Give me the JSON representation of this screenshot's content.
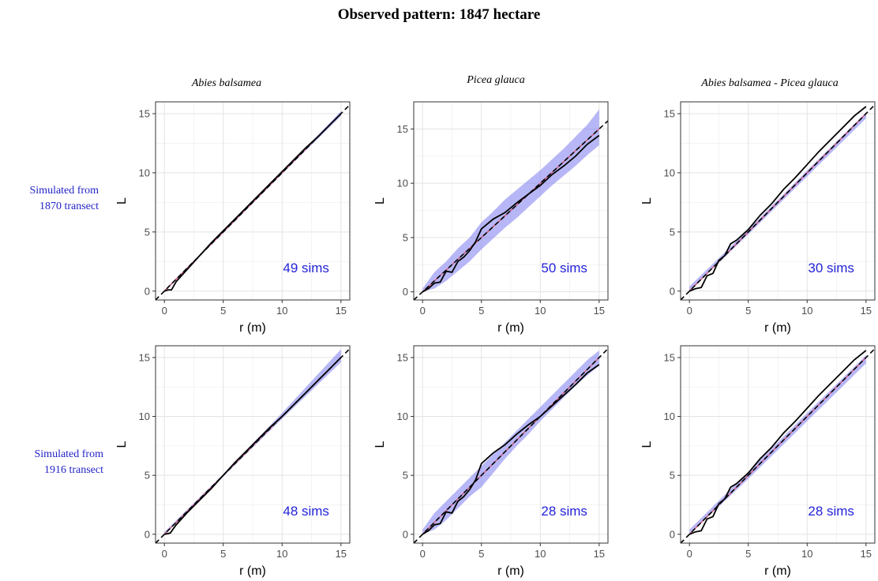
{
  "title": "Observed pattern: 1847 hectare",
  "column_titles": [
    "Abies balsamea",
    "Picea glauca",
    "Abies balsamea - Picea glauca"
  ],
  "row_labels": [
    [
      "Simulated from",
      "1870 transect"
    ],
    [
      "Simulated from",
      "1916 transect"
    ]
  ],
  "colors": {
    "envelope": "#7b7bf0",
    "expected_line": "#d05070",
    "observed_line": "#000000",
    "theoretical_line": "#000000",
    "sims_label": "#2323d8",
    "row_label": "#2323c8",
    "grid_major": "#e3e3e3",
    "grid_minor": "#f1f1f1"
  },
  "chart_data": [
    {
      "type": "line",
      "panel": "row1-col1",
      "sims_label": "49 sims",
      "xlabel": "r (m)",
      "ylabel": "L",
      "xlim": [
        -0.75,
        15.75
      ],
      "ylim": [
        -0.75,
        16
      ],
      "xticks": [
        0,
        5,
        10,
        15
      ],
      "yticks": [
        0,
        5,
        10,
        15
      ],
      "series": [
        {
          "role": "envelope",
          "x": [
            0,
            5,
            10,
            15
          ],
          "lower": [
            0,
            4.9,
            9.9,
            14.8
          ],
          "upper": [
            0.1,
            5.1,
            10.1,
            15.2
          ]
        },
        {
          "role": "expected",
          "x": [
            0,
            15
          ],
          "y": [
            0,
            15
          ]
        },
        {
          "role": "theoretical",
          "x": [
            -0.75,
            15.75
          ],
          "y": [
            -0.75,
            15.75
          ]
        },
        {
          "role": "observed",
          "x": [
            0,
            0.3,
            0.6,
            1,
            2,
            3,
            4,
            5,
            6,
            7,
            8,
            9,
            10,
            11,
            12,
            13,
            14,
            15
          ],
          "y": [
            0,
            0.1,
            0.1,
            0.8,
            1.9,
            3.0,
            4.1,
            5.1,
            6.1,
            7.1,
            8.1,
            9.1,
            10.1,
            11.1,
            12.1,
            13.0,
            14.0,
            15.0
          ]
        }
      ]
    },
    {
      "type": "line",
      "panel": "row1-col2",
      "sims_label": "50 sims",
      "xlabel": "r (m)",
      "ylabel": "L",
      "xlim": [
        -0.75,
        15.75
      ],
      "ylim": [
        -0.75,
        17.5
      ],
      "xticks": [
        0,
        5,
        10,
        15
      ],
      "yticks": [
        0,
        5,
        10,
        15
      ],
      "series": [
        {
          "role": "envelope",
          "x": [
            0,
            1,
            2,
            3,
            4,
            5,
            6,
            7,
            8,
            9,
            10,
            11,
            12,
            13,
            14,
            15
          ],
          "lower": [
            0,
            0.3,
            1.0,
            1.9,
            2.8,
            3.9,
            4.9,
            5.9,
            6.8,
            7.8,
            8.8,
            9.8,
            10.7,
            11.6,
            12.6,
            13.5
          ],
          "upper": [
            0.3,
            1.8,
            2.8,
            4.0,
            5.0,
            6.4,
            7.4,
            8.5,
            9.4,
            10.3,
            11.2,
            12.2,
            13.2,
            14.3,
            15.4,
            16.8
          ]
        },
        {
          "role": "expected",
          "x": [
            0,
            15
          ],
          "y": [
            0,
            15
          ]
        },
        {
          "role": "theoretical",
          "x": [
            -0.75,
            15.75
          ],
          "y": [
            -0.75,
            15.75
          ]
        },
        {
          "role": "observed",
          "x": [
            0,
            0.5,
            1,
            1.5,
            2,
            2.5,
            3,
            3.5,
            4,
            4.5,
            5,
            6,
            7,
            8,
            9,
            10,
            11,
            12,
            13,
            14,
            15
          ],
          "y": [
            0,
            0.3,
            0.8,
            0.9,
            1.9,
            1.8,
            2.8,
            3.2,
            3.8,
            4.6,
            5.8,
            6.7,
            7.3,
            8.2,
            9.0,
            9.8,
            10.8,
            11.6,
            12.5,
            13.6,
            14.4
          ]
        }
      ]
    },
    {
      "type": "line",
      "panel": "row1-col3",
      "sims_label": "30 sims",
      "xlabel": "r (m)",
      "ylabel": "L",
      "xlim": [
        -0.75,
        15.75
      ],
      "ylim": [
        -0.75,
        16
      ],
      "xticks": [
        0,
        5,
        10,
        15
      ],
      "yticks": [
        0,
        5,
        10,
        15
      ],
      "series": [
        {
          "role": "envelope",
          "x": [
            0,
            5,
            10,
            15
          ],
          "lower": [
            0,
            4.8,
            9.7,
            14.6
          ],
          "upper": [
            0.4,
            5.2,
            10.2,
            15.1
          ]
        },
        {
          "role": "expected",
          "x": [
            0,
            15
          ],
          "y": [
            0,
            15
          ]
        },
        {
          "role": "theoretical",
          "x": [
            -0.75,
            15.75
          ],
          "y": [
            -0.75,
            15.75
          ]
        },
        {
          "role": "observed",
          "x": [
            0,
            0.5,
            1,
            1.5,
            2,
            2.5,
            3,
            3.5,
            4,
            5,
            6,
            7,
            8,
            9,
            10,
            11,
            12,
            13,
            14,
            15
          ],
          "y": [
            0,
            0.2,
            0.3,
            1.3,
            1.5,
            2.6,
            3.0,
            4.0,
            4.3,
            5.2,
            6.4,
            7.4,
            8.6,
            9.6,
            10.7,
            11.8,
            12.8,
            13.8,
            14.8,
            15.6
          ]
        }
      ]
    },
    {
      "type": "line",
      "panel": "row2-col1",
      "sims_label": "48 sims",
      "xlabel": "r (m)",
      "ylabel": "L",
      "xlim": [
        -0.75,
        15.75
      ],
      "ylim": [
        -0.75,
        16
      ],
      "xticks": [
        0,
        5,
        10,
        15
      ],
      "yticks": [
        0,
        5,
        10,
        15
      ],
      "series": [
        {
          "role": "envelope",
          "x": [
            0,
            5,
            10,
            15
          ],
          "lower": [
            0,
            4.9,
            9.8,
            14.6
          ],
          "upper": [
            0.2,
            5.1,
            10.3,
            15.7
          ]
        },
        {
          "role": "expected",
          "x": [
            0,
            15
          ],
          "y": [
            0,
            15
          ]
        },
        {
          "role": "theoretical",
          "x": [
            -0.75,
            15.75
          ],
          "y": [
            -0.75,
            15.75
          ]
        },
        {
          "role": "observed",
          "x": [
            0,
            0.5,
            1,
            2,
            3,
            4,
            5,
            6,
            7,
            8,
            9,
            10,
            11,
            12,
            13,
            14,
            15
          ],
          "y": [
            0,
            0.1,
            0.8,
            1.9,
            2.9,
            3.9,
            5.0,
            6.1,
            7.1,
            8.1,
            9.1,
            10.0,
            11.0,
            12.0,
            13.0,
            14.0,
            15.0
          ]
        }
      ]
    },
    {
      "type": "line",
      "panel": "row2-col2",
      "sims_label": "28 sims",
      "xlabel": "r (m)",
      "ylabel": "L",
      "xlim": [
        -0.75,
        15.75
      ],
      "ylim": [
        -0.75,
        16
      ],
      "xticks": [
        0,
        5,
        10,
        15
      ],
      "yticks": [
        0,
        5,
        10,
        15
      ],
      "series": [
        {
          "role": "envelope",
          "x": [
            0,
            1,
            2,
            3,
            4,
            5,
            6,
            7,
            8,
            9,
            10,
            11,
            12,
            13,
            14,
            15
          ],
          "lower": [
            0,
            0.4,
            1.2,
            2.2,
            3.2,
            4.0,
            5.2,
            6.4,
            7.5,
            8.5,
            9.6,
            10.6,
            11.6,
            12.6,
            13.5,
            14.3
          ],
          "upper": [
            0.4,
            1.8,
            2.8,
            3.8,
            4.8,
            5.8,
            6.8,
            7.8,
            8.8,
            9.8,
            10.8,
            11.8,
            12.8,
            13.8,
            14.8,
            15.6
          ]
        },
        {
          "role": "expected",
          "x": [
            0,
            15
          ],
          "y": [
            0,
            15
          ]
        },
        {
          "role": "theoretical",
          "x": [
            -0.75,
            15.75
          ],
          "y": [
            -0.75,
            15.75
          ]
        },
        {
          "role": "observed",
          "x": [
            0,
            0.5,
            1,
            1.5,
            2,
            2.5,
            3,
            3.5,
            4,
            4.5,
            5,
            6,
            7,
            8,
            9,
            10,
            11,
            12,
            13,
            14,
            15
          ],
          "y": [
            0,
            0.3,
            0.8,
            0.9,
            1.9,
            1.8,
            2.8,
            3.2,
            3.8,
            4.6,
            6.0,
            6.9,
            7.6,
            8.5,
            9.3,
            10.0,
            10.9,
            11.8,
            12.7,
            13.7,
            14.4
          ]
        }
      ]
    },
    {
      "type": "line",
      "panel": "row2-col3",
      "sims_label": "28 sims",
      "xlabel": "r (m)",
      "ylabel": "L",
      "xlim": [
        -0.75,
        15.75
      ],
      "ylim": [
        -0.75,
        16
      ],
      "xticks": [
        0,
        5,
        10,
        15
      ],
      "yticks": [
        0,
        5,
        10,
        15
      ],
      "series": [
        {
          "role": "envelope",
          "x": [
            0,
            5,
            10,
            15
          ],
          "lower": [
            0,
            4.7,
            9.6,
            14.5
          ],
          "upper": [
            0.4,
            5.3,
            10.3,
            15.2
          ]
        },
        {
          "role": "expected",
          "x": [
            0,
            15
          ],
          "y": [
            0,
            15
          ]
        },
        {
          "role": "theoretical",
          "x": [
            -0.75,
            15.75
          ],
          "y": [
            -0.75,
            15.75
          ]
        },
        {
          "role": "observed",
          "x": [
            0,
            0.5,
            1,
            1.5,
            2,
            2.5,
            3,
            3.5,
            4,
            5,
            6,
            7,
            8,
            9,
            10,
            11,
            12,
            13,
            14,
            15
          ],
          "y": [
            0,
            0.2,
            0.3,
            1.3,
            1.5,
            2.6,
            3.0,
            4.0,
            4.3,
            5.2,
            6.4,
            7.4,
            8.6,
            9.6,
            10.7,
            11.8,
            12.8,
            13.8,
            14.8,
            15.6
          ]
        }
      ]
    }
  ]
}
